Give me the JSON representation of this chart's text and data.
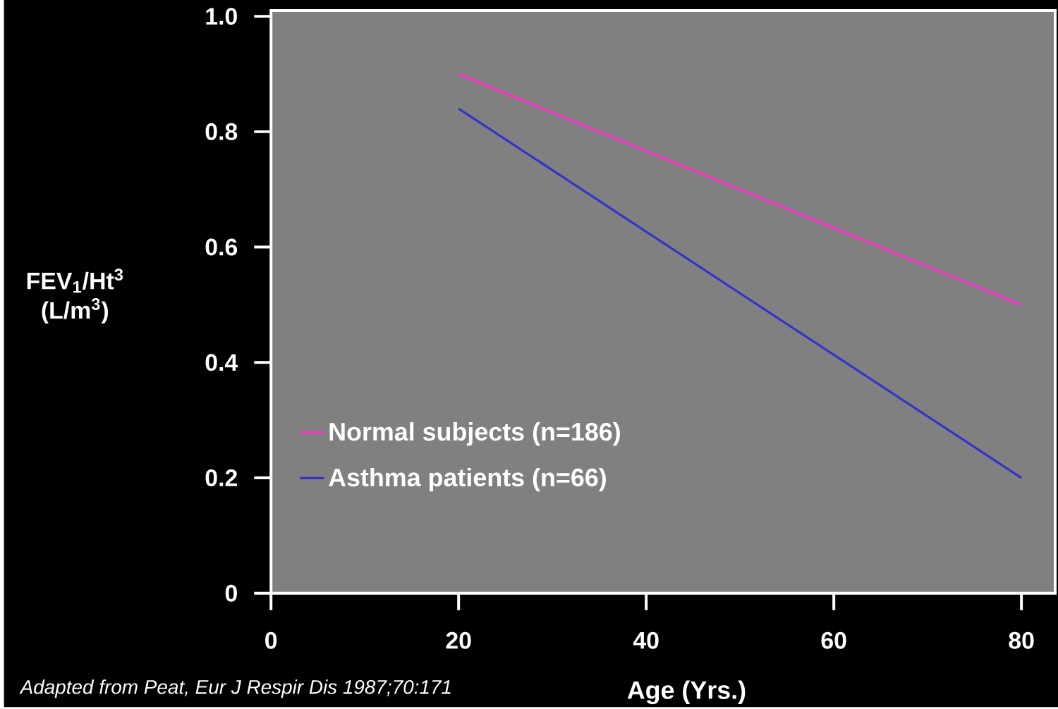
{
  "chart_data": {
    "type": "line",
    "xlabel": "Age (Yrs.)",
    "ylabel": "FEV$_{1}$/Ht$^{3}$ (L/m$^{3}$)",
    "x": [
      20,
      80
    ],
    "series": [
      {
        "name": "Normal subjects (n=186)",
        "color": "#ff33cc",
        "values": [
          0.9,
          0.5
        ]
      },
      {
        "name": "Asthma patients (n=66)",
        "color": "#3333cc",
        "values": [
          0.84,
          0.2
        ]
      }
    ],
    "xlim": [
      0,
      83.6
    ],
    "ylim": [
      0,
      1.01
    ],
    "xticks": [
      0,
      20,
      40,
      60,
      80
    ],
    "yticks": [
      0,
      0.2,
      0.4,
      0.6,
      0.8,
      {
        "value": 1,
        "label": "1.0"
      }
    ],
    "legend": "bottom left",
    "line_style": "solid",
    "marker": "none",
    "annotations": [
      "Adapted from Peat, Eur J Respir Dis 1987;70:171"
    ]
  }
}
